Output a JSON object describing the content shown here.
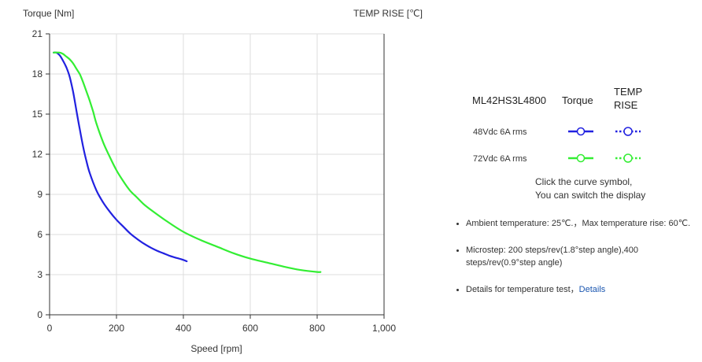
{
  "chart_data": {
    "type": "line",
    "title": "",
    "y_axis_left": {
      "label": "Torque  [Nm]",
      "ylim": [
        0,
        21
      ],
      "ticks": [
        0,
        3,
        6,
        9,
        12,
        15,
        18,
        21
      ],
      "tick_labels": [
        "0",
        "3",
        "6",
        "9",
        "12",
        "15",
        "18",
        "21"
      ]
    },
    "y_axis_right": {
      "label": "TEMP RISE [℃]"
    },
    "x_axis": {
      "label": "Speed [rpm]",
      "xlim": [
        0,
        1000
      ],
      "ticks": [
        0,
        200,
        400,
        600,
        800,
        1000
      ],
      "tick_labels": [
        "0",
        "200",
        "400",
        "600",
        "800",
        "1,000"
      ]
    },
    "grid": true,
    "legend_position": "right",
    "series": [
      {
        "name": "48Vdc   6A rms",
        "color": "#2121e0",
        "x": [
          12,
          20,
          30,
          40,
          50,
          60,
          70,
          80,
          90,
          100,
          110,
          120,
          140,
          160,
          180,
          200,
          220,
          240,
          260,
          280,
          300,
          320,
          340,
          360,
          380,
          400,
          410
        ],
        "y": [
          19.6,
          19.6,
          19.4,
          19.0,
          18.5,
          17.8,
          16.7,
          15.3,
          13.9,
          12.6,
          11.5,
          10.6,
          9.3,
          8.4,
          7.7,
          7.1,
          6.6,
          6.1,
          5.7,
          5.35,
          5.05,
          4.8,
          4.6,
          4.4,
          4.25,
          4.1,
          4.0
        ]
      },
      {
        "name": "72Vdc   6A rms",
        "color": "#33ee33",
        "x": [
          12,
          30,
          40,
          50,
          60,
          70,
          80,
          90,
          100,
          110,
          120,
          130,
          140,
          160,
          180,
          200,
          220,
          240,
          260,
          280,
          300,
          350,
          400,
          450,
          500,
          550,
          600,
          650,
          700,
          750,
          800,
          810
        ],
        "y": [
          19.6,
          19.6,
          19.5,
          19.3,
          19.1,
          18.8,
          18.4,
          18.0,
          17.4,
          16.7,
          16.0,
          15.2,
          14.3,
          12.9,
          11.8,
          10.8,
          10.0,
          9.3,
          8.8,
          8.3,
          7.9,
          7.0,
          6.2,
          5.6,
          5.1,
          4.6,
          4.2,
          3.9,
          3.6,
          3.35,
          3.2,
          3.2
        ]
      }
    ]
  },
  "legend": {
    "model": "ML42HS3L4800",
    "torque_header": "Torque",
    "temp_header": "TEMP RISE",
    "rows": [
      {
        "label": "48Vdc   6A rms",
        "color": "#2121e0"
      },
      {
        "label": "72Vdc   6A rms",
        "color": "#33ee33"
      }
    ]
  },
  "hint": {
    "line1": "Click the curve symbol,",
    "line2": "You can switch the display"
  },
  "notes": {
    "ambient": "Ambient temperature: 25℃.，Max temperature rise: 60℃.",
    "microstep": "Microstep: 200 steps/rev(1.8°step angle),400 steps/rev(0.9°step angle)",
    "details_prefix": "Details for temperature test，",
    "details_link": "Details"
  }
}
